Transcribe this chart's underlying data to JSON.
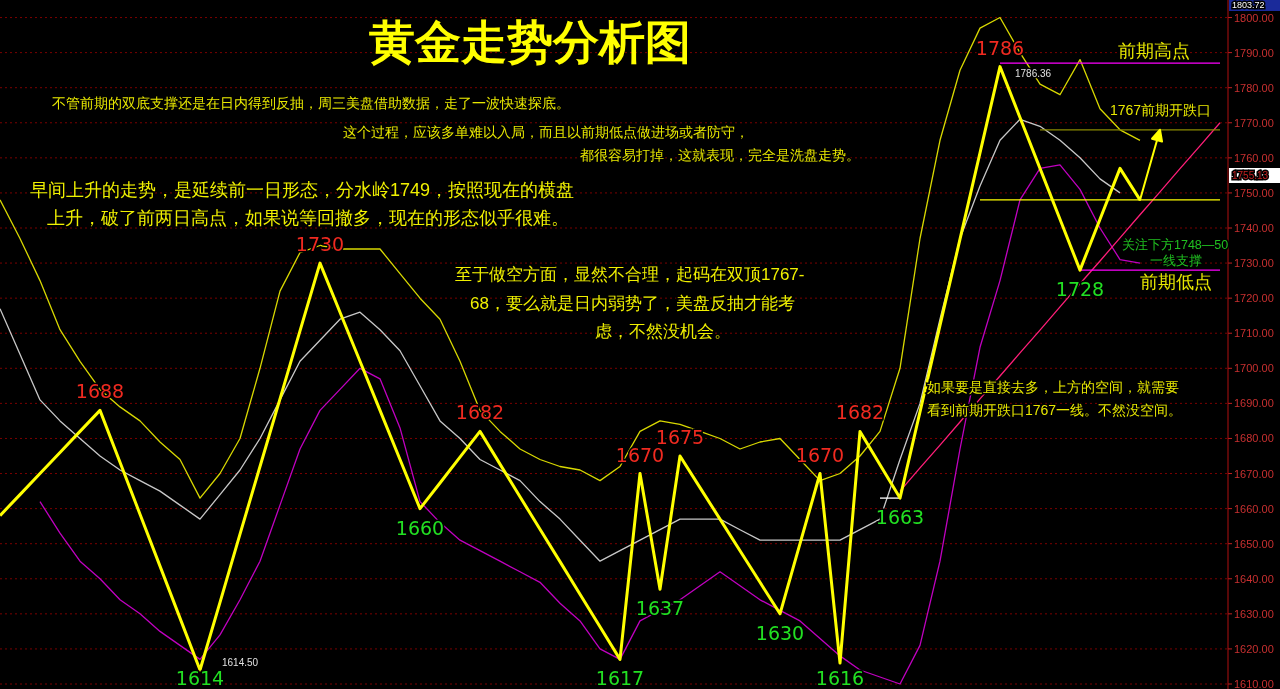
{
  "chart_data": {
    "type": "line",
    "title": "黄金走势分析图",
    "annotations": [
      "不管前期的双底支撑还是在日内得到反抽，周三美盘借助数据，走了一波快速探底。",
      "这个过程，应该多单难以入局，而且以前期低点做进场或者防守，",
      "都很容易打掉，这就表现，完全是洗盘走势。",
      "早间上升的走势，是延续前一日形态，分水岭1749，按照现在的横盘",
      "上升，破了前两日高点，如果说等回撤多，现在的形态似乎很难。",
      "至于做空方面，显然不合理，起码在双顶1767-",
      "68，要么就是日内弱势了，美盘反抽才能考",
      "虑，不然没机会。",
      "如果要是直接去多，上方的空间，就需要",
      "看到前期开跌口1767一线。不然没空间。",
      "关注下方1748—50",
      "一线支撑",
      {
        "text": "1767前期开跌口",
        "y": 1768
      },
      "前期高点",
      "前期低点",
      "1786.36",
      "1614.50",
      "1755.13",
      "1803.72"
    ],
    "categories": [
      null,
      null,
      null,
      null,
      null,
      null,
      null,
      null,
      null,
      null,
      null,
      null,
      null,
      null,
      null,
      null,
      null,
      null,
      null,
      null,
      null,
      null,
      null,
      null,
      null,
      null,
      null,
      null,
      null,
      null,
      null,
      null,
      null,
      null,
      null,
      null,
      null,
      null,
      null,
      null,
      null,
      null,
      null,
      null,
      null,
      null,
      null,
      null,
      null,
      null,
      null,
      null,
      null,
      null,
      null,
      null,
      null,
      null,
      null,
      null,
      null,
      null
    ],
    "ylim": [
      1610,
      1805
    ],
    "yticks": [
      {
        "value": 1610,
        "label": "1610.00"
      },
      {
        "value": 1620,
        "label": "1620.00"
      },
      {
        "value": 1630,
        "label": "1630.00"
      },
      {
        "value": 1640,
        "label": "1640.00"
      },
      {
        "value": 1650,
        "label": "1650.00"
      },
      {
        "value": 1660,
        "label": "1660.00"
      },
      {
        "value": 1670,
        "label": "1670.00"
      },
      {
        "value": 1680,
        "label": "1680.00"
      },
      {
        "value": 1690,
        "label": "1690.00"
      },
      {
        "value": 1700,
        "label": "1700.00"
      },
      {
        "value": 1710,
        "label": "1710.00"
      },
      {
        "value": 1720,
        "label": "1720.00"
      },
      {
        "value": 1730,
        "label": "1730.00"
      },
      {
        "value": 1740,
        "label": "1740.00"
      },
      {
        "value": 1750,
        "label": "1750.00"
      },
      {
        "value": 1760,
        "label": "1760.00"
      },
      {
        "value": 1770,
        "label": "1770.00"
      },
      {
        "value": 1780,
        "label": "1780.00"
      },
      {
        "value": 1790,
        "label": "1790.00"
      },
      {
        "value": 1800,
        "label": "1800.00"
      }
    ],
    "grid": "y",
    "tick_labels": "y",
    "series": [
      {
        "color": "#d8d800",
        "values": [
          1748,
          1737,
          1725,
          1711,
          1702,
          1694,
          1689,
          1685,
          1679,
          1674,
          1663,
          1670,
          1680,
          1700,
          1722,
          1733,
          1735,
          1734,
          1734,
          1734,
          1727,
          1720,
          1714,
          1702,
          1688,
          1682,
          1677,
          1674,
          1672,
          1671,
          1668,
          1672,
          1682,
          1685,
          1684,
          1682,
          1680,
          1677,
          1679,
          1680,
          1674,
          1668,
          1670,
          1675,
          1682,
          1700,
          1737,
          1765,
          1785,
          1797,
          1800,
          1790,
          1781,
          1778,
          1788,
          1774,
          1768,
          1765,
          null,
          null,
          null,
          null
        ]
      },
      {
        "color": "#c8c8c8",
        "values": [
          1717,
          1704,
          1691,
          1685,
          1680,
          1675,
          1671,
          1668,
          1665,
          1661,
          1657,
          1664,
          1671,
          1680,
          1691,
          1702,
          1708,
          1714,
          1716,
          1711,
          1705,
          1695,
          1685,
          1680,
          1674,
          1671,
          1668,
          1662,
          1657,
          1651,
          1645,
          1648,
          1651,
          1654,
          1657,
          1657,
          1657,
          1654,
          1651,
          1651,
          1651,
          1651,
          1651,
          1654,
          1657,
          1674,
          1690,
          1714,
          1737,
          1752,
          1765,
          1771,
          1769,
          1765,
          1760,
          1754,
          1750,
          null,
          null,
          null,
          null,
          null
        ]
      },
      {
        "color": "#c000c0",
        "values": [
          null,
          null,
          1662,
          1653,
          1645,
          1640,
          1634,
          1630,
          1625,
          1621,
          1617,
          1624,
          1634,
          1645,
          1661,
          1677,
          1688,
          1694,
          1700,
          1697,
          1683,
          1662,
          1656,
          1651,
          1648,
          1645,
          1642,
          1639,
          1633,
          1628,
          1620,
          1617,
          1628,
          1631,
          1634,
          1638,
          1642,
          1638,
          1634,
          1631,
          1628,
          1623,
          1618,
          1614,
          1612,
          1610,
          1621,
          1645,
          1677,
          1706,
          1725,
          1748,
          1757,
          1758,
          1751,
          1740,
          1731,
          1730,
          null,
          null,
          null,
          null
        ]
      },
      {
        "color": "#ff1e78",
        "values": [
          null,
          null,
          null,
          null,
          null,
          null,
          null,
          null,
          null,
          null,
          null,
          null,
          null,
          null,
          null,
          null,
          null,
          null,
          null,
          null,
          null,
          null,
          null,
          null,
          null,
          null,
          null,
          null,
          null,
          null,
          null,
          null,
          null,
          null,
          null,
          null,
          null,
          null,
          null,
          null,
          null,
          null,
          null,
          null,
          null,
          1665,
          1671.6,
          1678.1,
          1684.7,
          1691.3,
          1697.8,
          1704.4,
          1710.9,
          1717.5,
          1724.1,
          1730.6,
          1737.2,
          1743.8,
          1750.3,
          1756.9,
          1763.4,
          1770
        ]
      },
      {
        "color": "#ff00ff",
        "values": [
          null,
          null,
          null,
          null,
          null,
          null,
          null,
          null,
          null,
          null,
          null,
          null,
          null,
          null,
          null,
          null,
          null,
          null,
          null,
          null,
          null,
          null,
          null,
          null,
          null,
          null,
          null,
          null,
          null,
          null,
          null,
          null,
          null,
          null,
          null,
          null,
          null,
          null,
          null,
          null,
          null,
          null,
          null,
          null,
          null,
          null,
          null,
          null,
          null,
          null,
          1787,
          1787,
          1787,
          1787,
          1787,
          1787,
          1787,
          1787,
          1787,
          1787,
          1787,
          1787
        ]
      },
      {
        "color": "#8a8a00",
        "values": [
          null,
          null,
          null,
          null,
          null,
          null,
          null,
          null,
          null,
          null,
          null,
          null,
          null,
          null,
          null,
          null,
          null,
          null,
          null,
          null,
          null,
          null,
          null,
          null,
          null,
          null,
          null,
          null,
          null,
          null,
          null,
          null,
          null,
          null,
          null,
          null,
          null,
          null,
          null,
          null,
          null,
          null,
          null,
          null,
          null,
          null,
          null,
          null,
          null,
          null,
          null,
          null,
          1768,
          1768,
          1768,
          1768,
          1768,
          1768,
          1768,
          1768,
          1768,
          1768
        ]
      },
      {
        "color": "#ffff00",
        "values": [
          null,
          null,
          null,
          null,
          null,
          null,
          null,
          null,
          null,
          null,
          null,
          null,
          null,
          null,
          null,
          null,
          null,
          null,
          null,
          null,
          null,
          null,
          null,
          null,
          null,
          null,
          null,
          null,
          null,
          null,
          null,
          null,
          null,
          null,
          null,
          null,
          null,
          null,
          null,
          null,
          null,
          null,
          null,
          null,
          null,
          null,
          null,
          null,
          null,
          1748,
          1748,
          1748,
          1748,
          1748,
          1748,
          1748,
          1748,
          1748,
          1748,
          1748,
          1748,
          1748
        ]
      },
      {
        "color": "#ff00ff",
        "values": [
          null,
          null,
          null,
          null,
          null,
          null,
          null,
          null,
          null,
          null,
          null,
          null,
          null,
          null,
          null,
          null,
          null,
          null,
          null,
          null,
          null,
          null,
          null,
          null,
          null,
          null,
          null,
          null,
          null,
          null,
          null,
          null,
          null,
          null,
          null,
          null,
          null,
          null,
          null,
          null,
          null,
          null,
          null,
          null,
          null,
          null,
          null,
          null,
          null,
          null,
          null,
          null,
          null,
          null,
          1728,
          1728,
          1728,
          1728,
          1728,
          1728,
          1728,
          1728
        ]
      },
      {
        "color": "#ffffff",
        "values": [
          null,
          null,
          null,
          null,
          null,
          null,
          null,
          null,
          null,
          null,
          null,
          null,
          null,
          null,
          null,
          null,
          null,
          null,
          null,
          null,
          null,
          null,
          null,
          null,
          null,
          null,
          null,
          null,
          null,
          null,
          null,
          null,
          null,
          null,
          null,
          null,
          null,
          null,
          null,
          null,
          null,
          null,
          null,
          null,
          1663,
          1663,
          null,
          null,
          null,
          null,
          null,
          null,
          null,
          null,
          null,
          null,
          null,
          null,
          null,
          null,
          null,
          null
        ]
      },
      {
        "color": "#ffff00",
        "values": [
          1658,
          1664,
          1670,
          1676,
          1682,
          1688,
          1673.2,
          1658.4,
          1643.6,
          1628.8,
          1614,
          1633.3,
          1652.7,
          1672,
          1691.3,
          1710.7,
          1730,
          1716,
          1702,
          1688,
          1674,
          1660,
          1667.3,
          1674.7,
          1682,
          1672.7,
          1663.4,
          1654.1,
          1644.9,
          1635.6,
          1626.3,
          1617,
          1670,
          1637,
          1675,
          1666,
          1657,
          1648,
          1639,
          1630,
          1650,
          1670,
          1616,
          1682,
          1672.5,
          1663,
          1687.6,
          1712.2,
          1736.8,
          1761.4,
          1786,
          1771.5,
          1757,
          1742.5,
          1728,
          1742.5,
          1757,
          1748,
          null,
          null,
          null,
          null
        ],
        "value_labels": [
          null,
          null,
          null,
          null,
          null,
          "1688",
          null,
          null,
          null,
          null,
          "1614",
          null,
          null,
          null,
          null,
          null,
          "1730",
          null,
          null,
          null,
          null,
          "1660",
          null,
          null,
          "1682",
          null,
          null,
          null,
          null,
          null,
          null,
          "1617",
          "1670",
          "1637",
          "1675",
          null,
          null,
          null,
          null,
          "1630",
          null,
          "1670",
          "1616",
          "1682",
          null,
          "1663",
          null,
          null,
          null,
          null,
          "1786",
          null,
          null,
          null,
          "1728",
          null,
          null,
          null,
          null,
          null,
          null,
          null
        ]
      }
    ]
  }
}
